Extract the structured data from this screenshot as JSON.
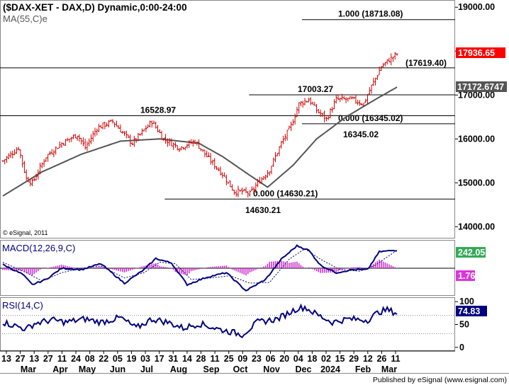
{
  "header": {
    "title": "($DAX-XET - DAX,D) Dynamic,0:00-24:00",
    "ma_label": "MA(55,C)e"
  },
  "footer": {
    "copyright": "© eSignal, 2011",
    "published": "Published by eSignal (www.esignal.com)"
  },
  "colors": {
    "price": "#cc0000",
    "ma": "#555555",
    "macd": "#000080",
    "histogram": "#cc33cc",
    "rsi": "#000080",
    "last_price_tag": "#ff0000",
    "ma_tag": "#555555",
    "macd_tag": "#33aa55",
    "signal_tag": "#dd33dd"
  },
  "chart_data": {
    "type": "candlestick",
    "price_panel": {
      "y_ticks": [
        14000,
        15000,
        16000,
        17000,
        18000,
        19000
      ],
      "y_tick_labels": [
        "14000.00",
        "15000.00",
        "16000.00",
        "17000.00",
        "18000.00",
        "19000.00"
      ],
      "ylim": [
        13780,
        19100
      ],
      "last_price": 17936.65,
      "last_price_label": "17936.65",
      "ma_value": 17172.6747,
      "ma_value_label": "17172.6747",
      "close_anchors": [
        [
          0,
          15500
        ],
        [
          8,
          15800
        ],
        [
          12,
          15100
        ],
        [
          15,
          15000
        ],
        [
          22,
          15600
        ],
        [
          30,
          15900
        ],
        [
          38,
          16100
        ],
        [
          42,
          15800
        ],
        [
          48,
          16250
        ],
        [
          56,
          16400
        ],
        [
          66,
          15900
        ],
        [
          72,
          16200
        ],
        [
          76,
          16400
        ],
        [
          82,
          16000
        ],
        [
          90,
          15800
        ],
        [
          98,
          15950
        ],
        [
          104,
          15600
        ],
        [
          112,
          15200
        ],
        [
          118,
          14800
        ],
        [
          122,
          14800
        ],
        [
          126,
          14750
        ],
        [
          131,
          15050
        ],
        [
          136,
          15300
        ],
        [
          142,
          15900
        ],
        [
          147,
          16300
        ],
        [
          151,
          16800
        ],
        [
          156,
          16900
        ],
        [
          160,
          16650
        ],
        [
          165,
          16450
        ],
        [
          170,
          16900
        ],
        [
          178,
          16900
        ],
        [
          184,
          16800
        ],
        [
          188,
          17200
        ],
        [
          193,
          17650
        ],
        [
          197,
          17800
        ],
        [
          201,
          17936
        ]
      ],
      "ma_anchors": [
        [
          0,
          14700
        ],
        [
          20,
          15250
        ],
        [
          40,
          15650
        ],
        [
          60,
          15950
        ],
        [
          80,
          16000
        ],
        [
          100,
          15900
        ],
        [
          112,
          15600
        ],
        [
          125,
          15200
        ],
        [
          135,
          14900
        ],
        [
          148,
          15400
        ],
        [
          160,
          16000
        ],
        [
          175,
          16500
        ],
        [
          190,
          16900
        ],
        [
          201,
          17180
        ]
      ],
      "levels": [
        {
          "label": "1.000 (18718.08)",
          "value": 18718.08,
          "from": 154,
          "to": 201
        },
        {
          "label": "(17619.40)",
          "value": 17619.4,
          "from": 0,
          "to": 201
        },
        {
          "label": "17003.27",
          "value": 17003.27,
          "from": 127,
          "to": 154
        },
        {
          "label": "16528.97",
          "value": 16528.97,
          "from": 0,
          "to": 84
        },
        {
          "label": "0.000 (16345.02)",
          "value": 16345.02,
          "from": 154,
          "to": 201
        },
        {
          "label": "0.000 (14630.21)",
          "value": 14630.21,
          "from": 84,
          "to": 201
        }
      ],
      "annotations": [
        {
          "text": "16528.97",
          "x": 84,
          "y": 16528.97
        },
        {
          "text": "17003.27",
          "x": 155,
          "y": 17003.27
        },
        {
          "text": "16345.02",
          "x": 180,
          "y": 16345.02
        },
        {
          "text": "14630.21",
          "x": 130,
          "y": 14630.21
        }
      ]
    },
    "macd_panel": {
      "label": "MACD(12,26,9,C)",
      "macd_value_label": "242.05",
      "signal_value_label": "1.76",
      "ylim": [
        -350,
        350
      ],
      "macd_anchors": [
        [
          0,
          50
        ],
        [
          10,
          -80
        ],
        [
          15,
          -220
        ],
        [
          22,
          -150
        ],
        [
          30,
          0
        ],
        [
          40,
          -20
        ],
        [
          50,
          60
        ],
        [
          62,
          -200
        ],
        [
          72,
          -20
        ],
        [
          78,
          130
        ],
        [
          86,
          70
        ],
        [
          94,
          -220
        ],
        [
          104,
          -120
        ],
        [
          114,
          -60
        ],
        [
          124,
          -300
        ],
        [
          134,
          -150
        ],
        [
          142,
          120
        ],
        [
          150,
          300
        ],
        [
          156,
          240
        ],
        [
          162,
          40
        ],
        [
          170,
          -60
        ],
        [
          178,
          -20
        ],
        [
          186,
          -20
        ],
        [
          192,
          220
        ],
        [
          201,
          242
        ]
      ],
      "signal_anchors": [
        [
          0,
          80
        ],
        [
          12,
          -60
        ],
        [
          20,
          -170
        ],
        [
          30,
          -60
        ],
        [
          40,
          0
        ],
        [
          50,
          30
        ],
        [
          62,
          -130
        ],
        [
          72,
          -60
        ],
        [
          80,
          80
        ],
        [
          88,
          60
        ],
        [
          96,
          -150
        ],
        [
          106,
          -130
        ],
        [
          116,
          -100
        ],
        [
          126,
          -200
        ],
        [
          136,
          -190
        ],
        [
          146,
          120
        ],
        [
          154,
          260
        ],
        [
          162,
          120
        ],
        [
          172,
          -20
        ],
        [
          182,
          -40
        ],
        [
          190,
          40
        ],
        [
          196,
          150
        ],
        [
          201,
          240
        ]
      ]
    },
    "rsi_panel": {
      "label": "RSI(14,C)",
      "value_label": "74.83",
      "y_ticks": [
        0,
        50,
        100
      ],
      "y_tick_labels": [
        "0",
        "50",
        "100"
      ],
      "ylim": [
        -5,
        105
      ],
      "rsi_anchors": [
        [
          0,
          55
        ],
        [
          12,
          40
        ],
        [
          16,
          52
        ],
        [
          25,
          60
        ],
        [
          32,
          55
        ],
        [
          42,
          62
        ],
        [
          50,
          55
        ],
        [
          60,
          65
        ],
        [
          68,
          42
        ],
        [
          76,
          62
        ],
        [
          84,
          55
        ],
        [
          92,
          42
        ],
        [
          100,
          52
        ],
        [
          110,
          40
        ],
        [
          122,
          28
        ],
        [
          130,
          55
        ],
        [
          140,
          62
        ],
        [
          150,
          85
        ],
        [
          154,
          88
        ],
        [
          160,
          72
        ],
        [
          168,
          55
        ],
        [
          176,
          62
        ],
        [
          186,
          60
        ],
        [
          192,
          78
        ],
        [
          196,
          82
        ],
        [
          201,
          75
        ]
      ]
    },
    "x_axis": {
      "tick_labels": [
        "13",
        "27",
        "13",
        "27",
        "11",
        "24",
        "08",
        "22",
        "05",
        "19",
        "03",
        "17",
        "31",
        "14",
        "28",
        "11",
        "25",
        "09",
        "23",
        "06",
        "20",
        "04",
        "18",
        "02",
        "15",
        "29",
        "12",
        "26",
        "11"
      ],
      "month_labels": [
        "Mar",
        "Apr",
        "May",
        "Jun",
        "Jul",
        "Aug",
        "Sep",
        "Oct",
        "Nov",
        "Dec",
        "2024",
        "Feb",
        "Mar"
      ]
    }
  }
}
